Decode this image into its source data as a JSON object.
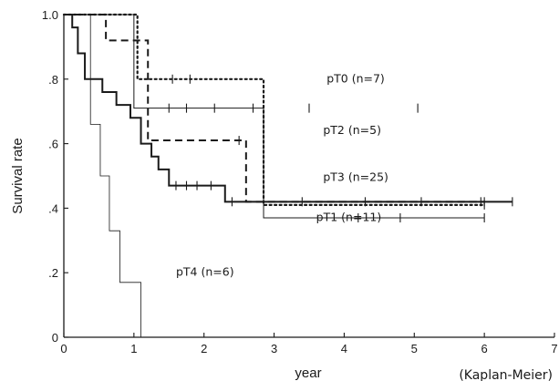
{
  "chart_data": {
    "type": "line",
    "step": true,
    "xlabel": "year",
    "ylabel": "Survival rate",
    "annotation": "(Kaplan-Meier)",
    "xlim": [
      0,
      7
    ],
    "ylim": [
      0,
      1.0
    ],
    "x_ticks": [
      {
        "value": 0,
        "label": "0"
      },
      {
        "value": 1,
        "label": "1"
      },
      {
        "value": 2,
        "label": "2"
      },
      {
        "value": 3,
        "label": "3"
      },
      {
        "value": 4,
        "label": "4"
      },
      {
        "value": 5,
        "label": "5"
      },
      {
        "value": 6,
        "label": "6"
      },
      {
        "value": 7,
        "label": "7"
      }
    ],
    "y_ticks": [
      {
        "value": 0,
        "label": "0"
      },
      {
        "value": 0.2,
        "label": ".2"
      },
      {
        "value": 0.4,
        "label": ".4"
      },
      {
        "value": 0.6,
        "label": ".6"
      },
      {
        "value": 0.8,
        "label": ".8"
      },
      {
        "value": 1.0,
        "label": "1.0"
      }
    ],
    "grid": false,
    "series": [
      {
        "name": "pT0 (n=7)",
        "style": "dotted",
        "color": "#1a1a1a",
        "steps": [
          [
            0,
            1.0
          ],
          [
            1.05,
            0.8
          ],
          [
            2.85,
            0.41
          ],
          [
            6.0,
            0.41
          ]
        ],
        "censored": [
          [
            1.55,
            0.8
          ],
          [
            1.8,
            0.8
          ],
          [
            6.0,
            0.41
          ]
        ],
        "label_at": [
          3.75,
          0.79
        ]
      },
      {
        "name": "pT1 (n=11)",
        "style": "dashdot",
        "color": "#1a1a1a",
        "steps": [
          [
            0,
            1.0
          ],
          [
            1.0,
            0.71
          ],
          [
            2.85,
            0.37
          ],
          [
            6.0,
            0.37
          ]
        ],
        "censored": [
          [
            1.5,
            0.71
          ],
          [
            1.75,
            0.71
          ],
          [
            2.15,
            0.71
          ],
          [
            2.7,
            0.71
          ],
          [
            3.5,
            0.71
          ],
          [
            5.05,
            0.71
          ],
          [
            4.2,
            0.37
          ],
          [
            4.8,
            0.37
          ],
          [
            6.0,
            0.37
          ]
        ],
        "label_at": [
          3.6,
          0.36
        ]
      },
      {
        "name": "pT2 (n=5)",
        "style": "dashed",
        "color": "#1a1a1a",
        "steps": [
          [
            0,
            1.0
          ],
          [
            0.6,
            0.92
          ],
          [
            1.2,
            0.61
          ],
          [
            2.6,
            0.42
          ],
          [
            6.0,
            0.42
          ]
        ],
        "censored": [
          [
            2.5,
            0.61
          ],
          [
            6.0,
            0.42
          ]
        ],
        "label_at": [
          3.7,
          0.63
        ]
      },
      {
        "name": "pT3 (n=25)",
        "style": "solid",
        "color": "#1a1a1a",
        "steps": [
          [
            0,
            1.0
          ],
          [
            0.12,
            0.96
          ],
          [
            0.2,
            0.88
          ],
          [
            0.3,
            0.8
          ],
          [
            0.55,
            0.76
          ],
          [
            0.75,
            0.72
          ],
          [
            0.95,
            0.68
          ],
          [
            1.1,
            0.6
          ],
          [
            1.25,
            0.56
          ],
          [
            1.35,
            0.52
          ],
          [
            1.5,
            0.47
          ],
          [
            2.3,
            0.42
          ],
          [
            6.4,
            0.42
          ]
        ],
        "censored": [
          [
            1.6,
            0.47
          ],
          [
            1.75,
            0.47
          ],
          [
            1.9,
            0.47
          ],
          [
            2.1,
            0.47
          ],
          [
            2.4,
            0.42
          ],
          [
            3.4,
            0.42
          ],
          [
            4.3,
            0.42
          ],
          [
            5.1,
            0.42
          ],
          [
            5.95,
            0.42
          ],
          [
            6.4,
            0.42
          ]
        ],
        "label_at": [
          3.7,
          0.485
        ]
      },
      {
        "name": "pT4 (n=6)",
        "style": "thin-solid",
        "color": "#1a1a1a",
        "steps": [
          [
            0,
            1.0
          ],
          [
            0.38,
            0.66
          ],
          [
            0.52,
            0.5
          ],
          [
            0.65,
            0.33
          ],
          [
            0.8,
            0.17
          ],
          [
            1.1,
            0.0
          ]
        ],
        "censored": [],
        "label_at": [
          1.6,
          0.19
        ]
      }
    ]
  }
}
